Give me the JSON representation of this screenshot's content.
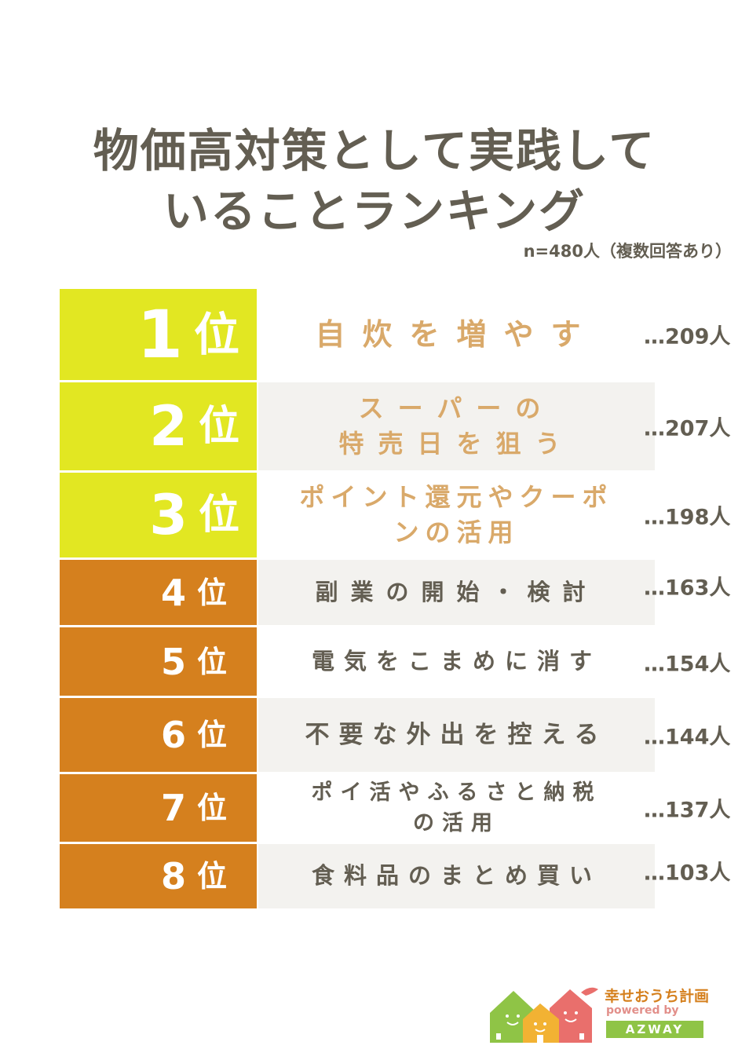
{
  "title_line1": "物価高対策として実践して",
  "title_line2": "いることランキング",
  "sample_note": "n=480人（複数回答あり）",
  "rank_unit": "位",
  "rows": [
    {
      "rank": "1",
      "label": "自炊を増やす",
      "count": "…209人"
    },
    {
      "rank": "2",
      "label": "スーパーの\n特売日を狙う",
      "count": "…207人"
    },
    {
      "rank": "3",
      "label": "ポイント還元やクーポ\nンの活用",
      "count": "…198人"
    },
    {
      "rank": "4",
      "label": "副業の開始・検討",
      "count": "…163人"
    },
    {
      "rank": "5",
      "label": "電気をこまめに消す",
      "count": "…154人"
    },
    {
      "rank": "6",
      "label": "不要な外出を控える",
      "count": "…144人"
    },
    {
      "rank": "7",
      "label": "ポイ活やふるさと納税\nの活用",
      "count": "…137人"
    },
    {
      "rank": "8",
      "label": "食料品のまとめ買い",
      "count": "…103人"
    }
  ],
  "logo": {
    "brand": "幸せおうち計画",
    "powered": "powered by",
    "company": "AZWAY",
    "house_colors": [
      "#8fc446",
      "#f2b233",
      "#e96f6c"
    ]
  },
  "colors": {
    "top3": "#e2e722",
    "rest": "#d5801e",
    "text": "#635e52",
    "accent_text": "#d9a96a",
    "row_gray": "#f3f2ef"
  }
}
